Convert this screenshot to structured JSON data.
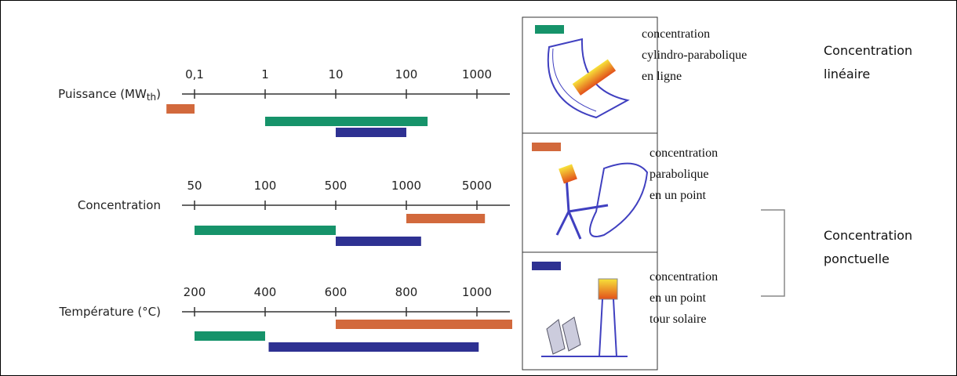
{
  "scales": [
    {
      "label": "Puissance (MW",
      "label_sub": "th",
      "label_end": ")",
      "scale": "log",
      "ticks": [
        {
          "value": 0.1,
          "label": "0,1"
        },
        1,
        10,
        100,
        1000
      ],
      "bars": [
        {
          "color": "#d2693c",
          "range": [
            0.04,
            0.1
          ]
        },
        {
          "color": "#16936a",
          "range": [
            1,
            200
          ]
        },
        {
          "color": "#2e3192",
          "range": [
            10,
            100
          ]
        }
      ]
    },
    {
      "label": "Concentration",
      "scale": "log",
      "ticks": [
        50,
        100,
        500,
        1000,
        5000
      ],
      "bars": [
        {
          "color": "#d2693c",
          "range": [
            1000,
            6000
          ]
        },
        {
          "color": "#16936a",
          "range": [
            50,
            500
          ]
        },
        {
          "color": "#2e3192",
          "range": [
            500,
            1400
          ]
        }
      ]
    },
    {
      "label": "Température (°C)",
      "scale": "linear",
      "ticks": [
        200,
        400,
        600,
        800,
        1000
      ],
      "bars": [
        {
          "color": "#d2693c",
          "range": [
            600,
            1100
          ]
        },
        {
          "color": "#16936a",
          "range": [
            200,
            400
          ]
        },
        {
          "color": "#2e3192",
          "range": [
            410,
            1005
          ]
        }
      ]
    }
  ],
  "technologies": [
    {
      "color": "#16936a",
      "lines": [
        "concentration",
        "cylindro-parabolique",
        "en ligne"
      ]
    },
    {
      "color": "#d2693c",
      "lines": [
        "concentration",
        "parabolique",
        "en un point"
      ]
    },
    {
      "color": "#2e3192",
      "lines": [
        "concentration",
        "en un point",
        "tour solaire"
      ]
    }
  ],
  "groups": [
    {
      "lines": [
        "Concentration",
        "linéaire"
      ]
    },
    {
      "lines": [
        "Concentration",
        "ponctuelle"
      ]
    }
  ]
}
